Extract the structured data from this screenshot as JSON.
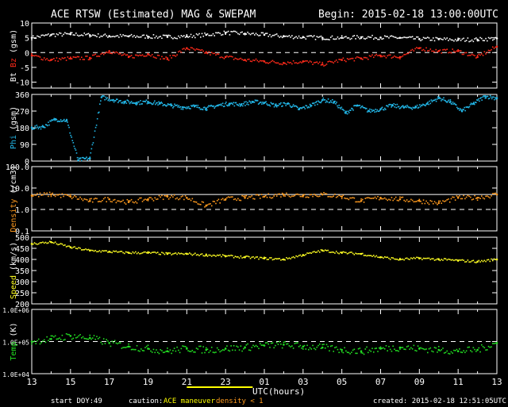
{
  "header": {
    "title": "ACE RTSW (Estimated) MAG & SWEPAM",
    "begin": "Begin: 2015-02-18 13:00:00UTC"
  },
  "footer": {
    "start_doy_label": "start DOY:",
    "start_doy": "49",
    "caution_label": "caution:",
    "caution_maneuver": "ACE maneuver",
    "caution_density": "density < 1",
    "created": "created: 2015-02-18 12:51:05UTC"
  },
  "colors": {
    "bt": "#ffffff",
    "bz": "#ff2a1a",
    "phi": "#22b7e8",
    "density": "#ff9a1e",
    "speed": "#ffff22",
    "temp": "#22e022",
    "frame": "#ffffff",
    "maneuver_bar": "#ffff00"
  },
  "chart_data": {
    "type": "scatter",
    "title": "ACE RTSW (Estimated) MAG & SWEPAM",
    "xlabel": "UTC(hours)",
    "x_ticks": [
      "13",
      "15",
      "17",
      "19",
      "21",
      "23",
      "01",
      "03",
      "05",
      "07",
      "09",
      "11",
      "13"
    ],
    "x_range_hours": [
      0,
      24
    ],
    "maneuver_interval_hours": [
      8.0,
      11.4
    ],
    "panels": [
      {
        "id": "bt_bz",
        "ylabel_parts": [
          "Bt",
          "Bz",
          "(gsm)"
        ],
        "ylim": [
          -12,
          10
        ],
        "yticks": [
          10,
          5,
          0,
          -5,
          -10
        ],
        "reference_lines": [
          0
        ],
        "series": [
          {
            "name": "Bt",
            "color": "#ffffff",
            "x": [
              0,
              1,
              2,
              3,
              4,
              5,
              6,
              7,
              8,
              9,
              10,
              11,
              12,
              13,
              14,
              15,
              16,
              17,
              18,
              19,
              20,
              21,
              22,
              23,
              24
            ],
            "y": [
              5.0,
              6.0,
              6.2,
              5.9,
              5.6,
              5.5,
              5.4,
              5.3,
              5.5,
              6.0,
              6.7,
              6.4,
              6.0,
              5.5,
              5.2,
              5.0,
              5.0,
              5.2,
              5.1,
              5.0,
              4.6,
              4.5,
              4.3,
              4.4,
              4.8
            ]
          },
          {
            "name": "Bz",
            "color": "#ff2a1a",
            "x": [
              0,
              1,
              2,
              3,
              4,
              5,
              6,
              7,
              8,
              9,
              10,
              11,
              12,
              13,
              14,
              15,
              16,
              17,
              18,
              19,
              20,
              21,
              22,
              23,
              24
            ],
            "y": [
              -1.0,
              -2.5,
              -2.0,
              -1.8,
              0.5,
              -1.5,
              -0.5,
              -2.2,
              1.5,
              0.0,
              -1.5,
              -2.5,
              -3.0,
              -3.5,
              -3.0,
              -4.0,
              -2.5,
              -2.0,
              -1.0,
              -1.5,
              1.5,
              0.5,
              0.5,
              -1.5,
              2.0
            ]
          }
        ]
      },
      {
        "id": "phi",
        "ylabel_parts": [
          "Phi",
          "(gsm)"
        ],
        "ylim": [
          0,
          360
        ],
        "yticks": [
          360,
          270,
          180,
          90,
          0
        ],
        "reference_lines": [],
        "series": [
          {
            "name": "Phi",
            "color": "#22b7e8",
            "x": [
              0,
              0.6,
              1.2,
              1.8,
              2.4,
              3,
              3.6,
              4.2,
              4.8,
              5.4,
              6,
              6.6,
              7.2,
              7.8,
              8.4,
              9,
              9.6,
              10.2,
              10.8,
              11.4,
              12,
              12.6,
              13.2,
              13.8,
              14.4,
              15,
              15.6,
              16.2,
              16.8,
              17.4,
              18,
              18.6,
              19.2,
              19.8,
              20.4,
              21,
              21.6,
              22.2,
              22.8,
              23.4,
              24
            ],
            "y": [
              180,
              185,
              225,
              220,
              5,
              15,
              345,
              330,
              320,
              315,
              320,
              310,
              300,
              290,
              295,
              285,
              300,
              310,
              305,
              320,
              315,
              300,
              310,
              280,
              300,
              330,
              320,
              260,
              300,
              270,
              280,
              300,
              290,
              290,
              310,
              340,
              320,
              270,
              310,
              350,
              340
            ]
          }
        ]
      },
      {
        "id": "density",
        "ylabel_parts": [
          "Density",
          "(/cm3)"
        ],
        "ylog": true,
        "ylim": [
          0.1,
          100
        ],
        "yticks": [
          "100.0",
          "10.0",
          "1.0",
          "0.1"
        ],
        "reference_lines": [
          1,
          5
        ],
        "series": [
          {
            "name": "Density",
            "color": "#ff9a1e",
            "x": [
              0,
              1,
              2,
              3,
              4,
              5,
              6,
              7,
              8,
              9,
              10,
              11,
              12,
              13,
              14,
              15,
              16,
              17,
              18,
              19,
              20,
              21,
              22,
              23,
              24
            ],
            "y": [
              4.5,
              5.0,
              4.0,
              2.5,
              3.0,
              2.2,
              3.0,
              4.0,
              3.5,
              1.5,
              3.0,
              3.5,
              4.0,
              5.0,
              4.5,
              5.0,
              4.0,
              2.5,
              3.5,
              3.0,
              2.5,
              2.0,
              3.5,
              3.5,
              5.0
            ]
          }
        ]
      },
      {
        "id": "speed",
        "ylabel_parts": [
          "Speed",
          "(km/s)"
        ],
        "ylim": [
          200,
          500
        ],
        "yticks": [
          500,
          450,
          400,
          350,
          300,
          250,
          200
        ],
        "reference_lines": [],
        "series": [
          {
            "name": "Speed",
            "color": "#ffff22",
            "x": [
              0,
              1,
              2,
              3,
              4,
              5,
              6,
              7,
              8,
              9,
              10,
              11,
              12,
              13,
              14,
              15,
              16,
              17,
              18,
              19,
              20,
              21,
              22,
              23,
              24
            ],
            "y": [
              470,
              478,
              455,
              440,
              435,
              430,
              430,
              425,
              425,
              420,
              415,
              410,
              405,
              400,
              420,
              440,
              430,
              425,
              410,
              400,
              405,
              400,
              395,
              390,
              400
            ]
          }
        ]
      },
      {
        "id": "temp",
        "ylabel_parts": [
          "Temp",
          "(K)"
        ],
        "ylog": true,
        "ylim": [
          10000,
          1000000
        ],
        "yticks": [
          "1.0E+06",
          "1.0E+05",
          "1.0E+04"
        ],
        "reference_lines": [
          100000
        ],
        "series": [
          {
            "name": "Temp",
            "color": "#22e022",
            "x": [
              0,
              1,
              2,
              3,
              4,
              5,
              6,
              7,
              8,
              9,
              10,
              11,
              12,
              13,
              14,
              15,
              16,
              17,
              18,
              19,
              20,
              21,
              22,
              23,
              24
            ],
            "y": [
              100000,
              120000,
              150000,
              130000,
              90000,
              70000,
              60000,
              50000,
              60000,
              55000,
              60000,
              65000,
              75000,
              80000,
              70000,
              65000,
              55000,
              50000,
              60000,
              65000,
              60000,
              55000,
              50000,
              55000,
              90000
            ]
          }
        ]
      }
    ]
  }
}
